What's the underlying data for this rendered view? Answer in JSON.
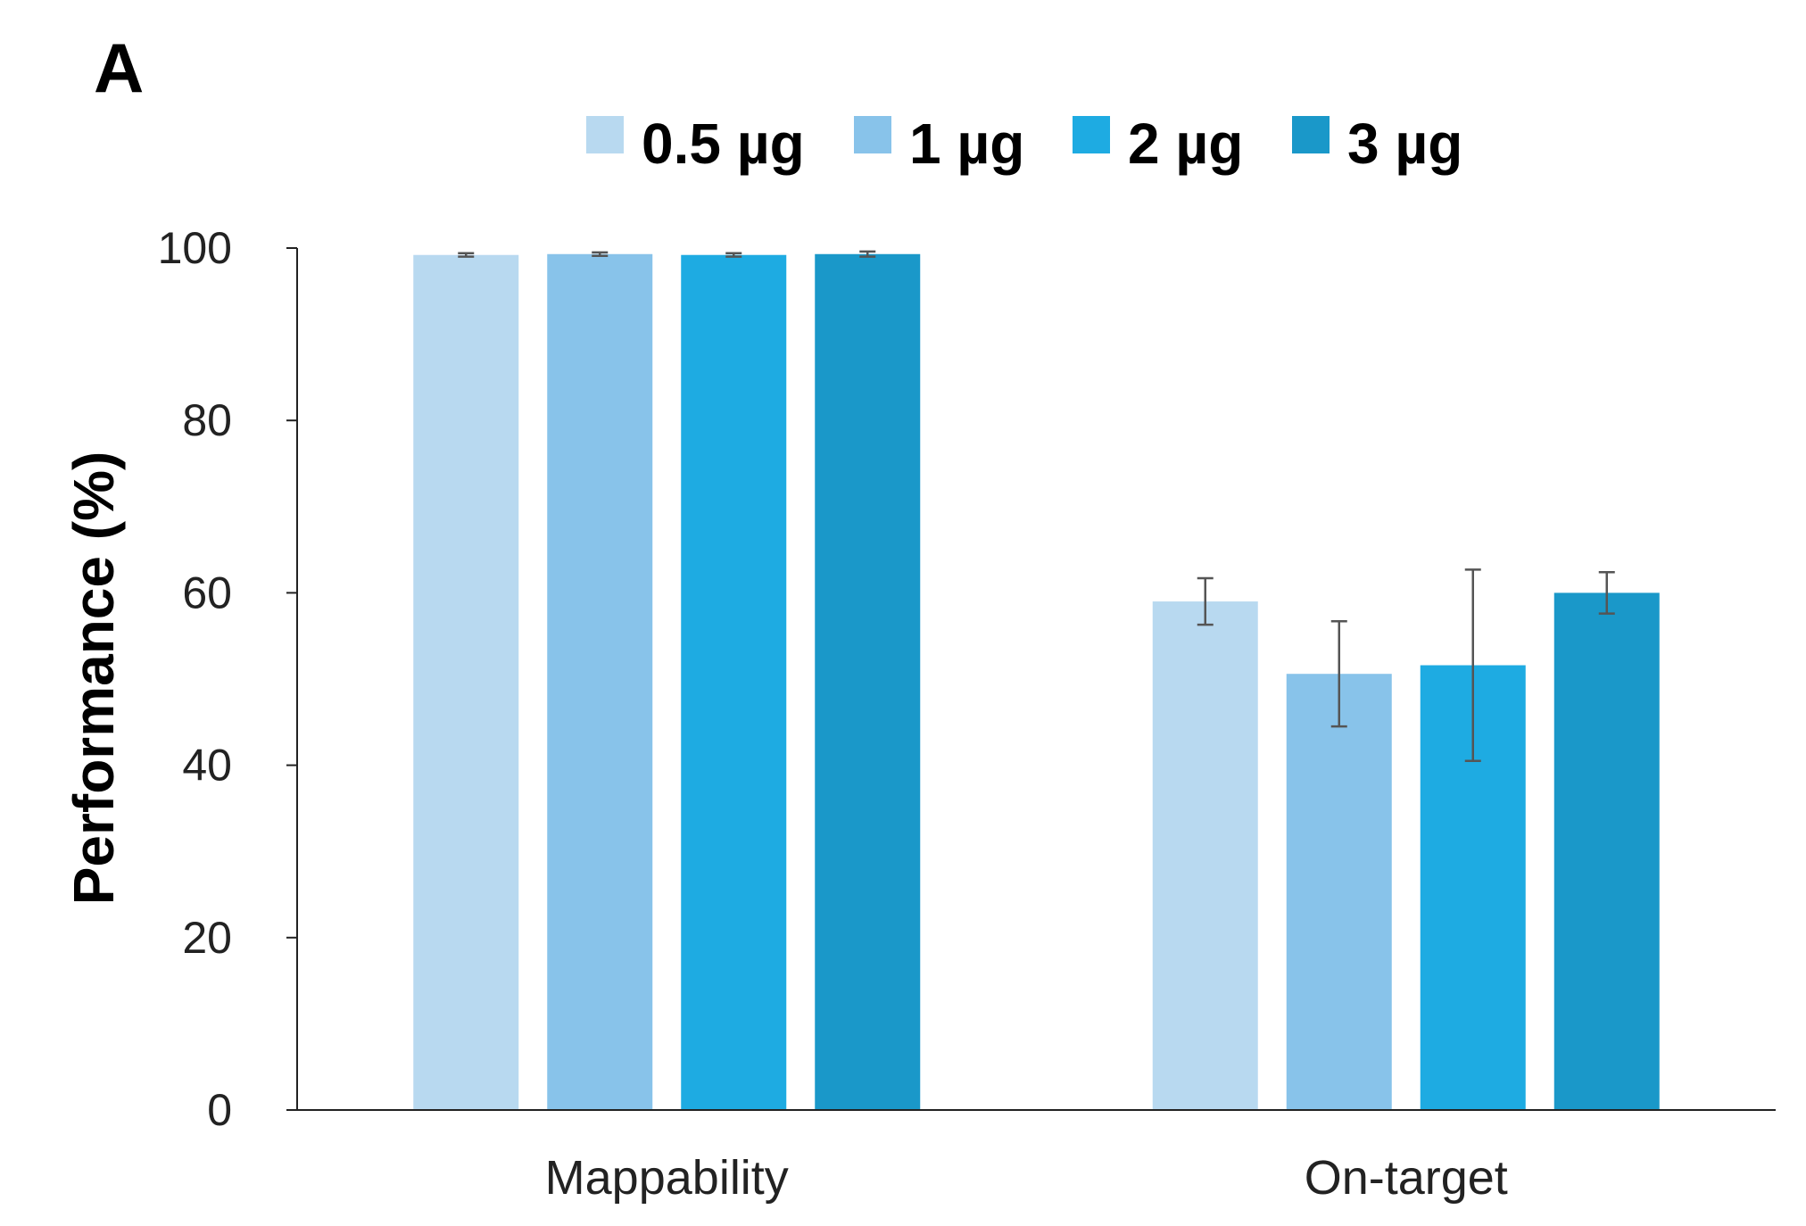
{
  "panel_label": "A",
  "chart_data": {
    "type": "bar",
    "categories": [
      "Mappability",
      "On-target"
    ],
    "series": [
      {
        "name": "0.5 µg",
        "color": "#b8d9f0",
        "values": [
          99.2,
          59.0
        ],
        "errors": [
          0.2,
          2.7
        ]
      },
      {
        "name": "1 µg",
        "color": "#88c3ea",
        "values": [
          99.3,
          50.6
        ],
        "errors": [
          0.2,
          6.1
        ]
      },
      {
        "name": "2 µg",
        "color": "#1eabe2",
        "values": [
          99.2,
          51.6
        ],
        "errors": [
          0.2,
          11.1
        ]
      },
      {
        "name": "3 µg",
        "color": "#1a98c9",
        "values": [
          99.3,
          60.0
        ],
        "errors": [
          0.3,
          2.4
        ]
      }
    ],
    "title": "",
    "xlabel": "",
    "ylabel": "Performance (%)",
    "ylim": [
      0,
      100
    ],
    "yticks": [
      0,
      20,
      40,
      60,
      80,
      100
    ],
    "ytick_labels": [
      "0",
      "20",
      "40",
      "60",
      "80",
      "100"
    ],
    "grid": false,
    "legend_position": "top"
  }
}
